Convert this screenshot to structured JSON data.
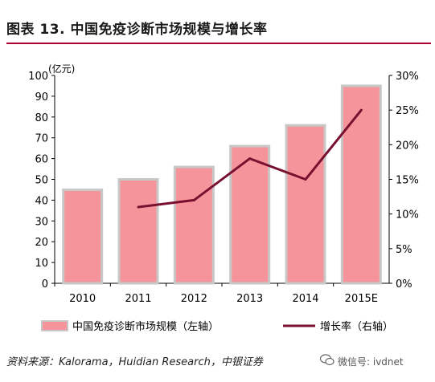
{
  "header": {
    "title": "图表 13. 中国免疫诊断市场规模与增长率"
  },
  "footer": {
    "source": "资料来源：Kalorama，Huidian Research，中银证券",
    "watermark": "微信号: ivdnet"
  },
  "colors": {
    "bar": "#f5949a",
    "bar_edge": "#c8c8c8",
    "line": "#7a1030",
    "rule": "#b1002f"
  },
  "chart_data": {
    "type": "bar",
    "title": "",
    "unit_left": "(亿元)",
    "categories": [
      "2010",
      "2011",
      "2012",
      "2013",
      "2014",
      "2015E"
    ],
    "series": [
      {
        "name": "中国免疫诊断市场规模（左轴）",
        "type": "bar",
        "axis": "left",
        "values": [
          45,
          50,
          56,
          66,
          76,
          95
        ]
      },
      {
        "name": "增长率（右轴）",
        "type": "line",
        "axis": "right",
        "values": [
          null,
          0.11,
          0.12,
          0.18,
          0.15,
          0.25
        ]
      }
    ],
    "ylim_left": [
      0,
      100
    ],
    "yticks_left": [
      "0",
      "10",
      "20",
      "30",
      "40",
      "50",
      "60",
      "70",
      "80",
      "90",
      "100"
    ],
    "ylim_right": [
      0,
      0.3
    ],
    "yticks_right": [
      "0%",
      "5%",
      "10%",
      "15%",
      "20%",
      "25%",
      "30%"
    ],
    "grid": false,
    "legend_position": "bottom"
  }
}
